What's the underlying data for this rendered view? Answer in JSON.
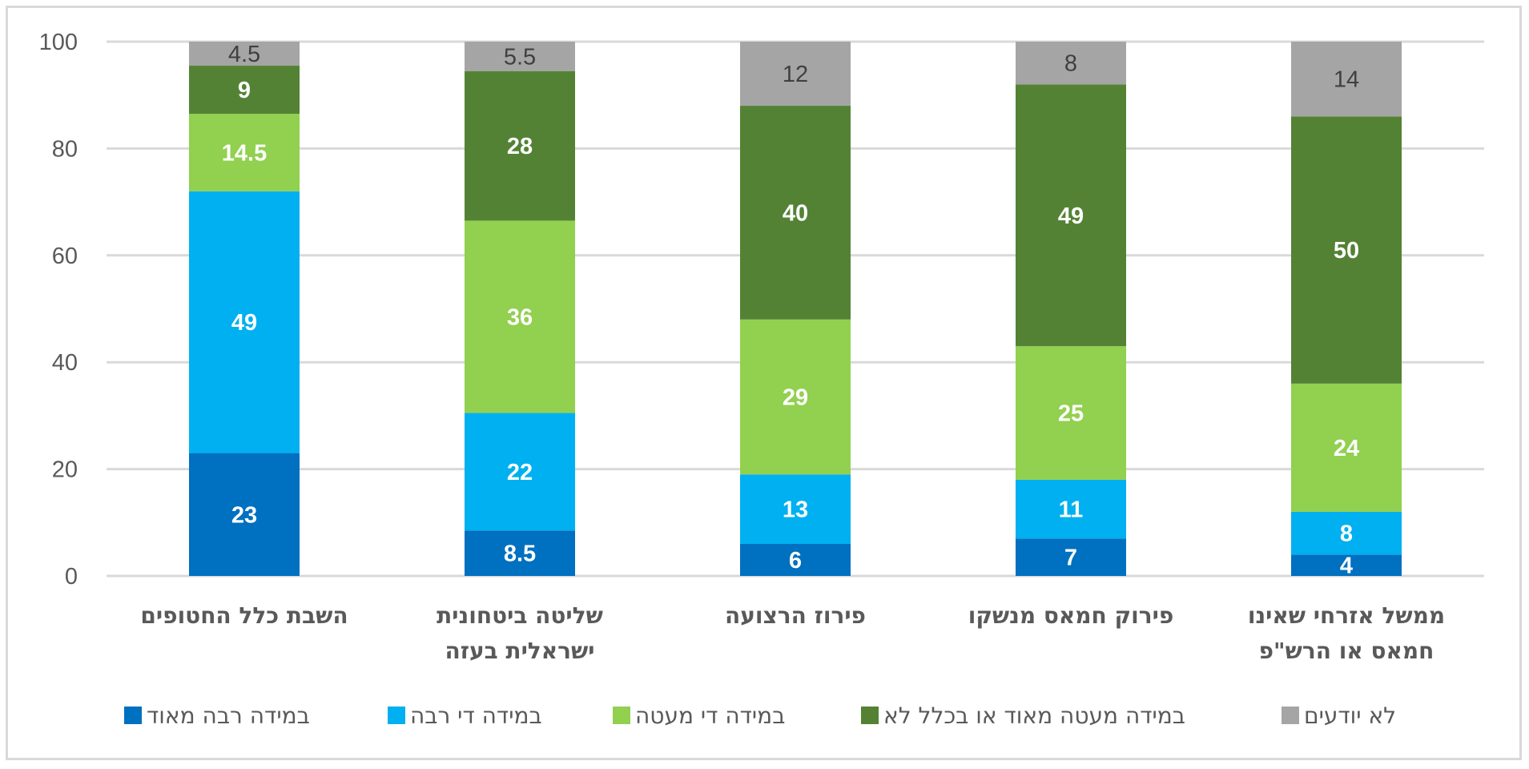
{
  "chart_data": {
    "type": "bar",
    "stacked": true,
    "title": "",
    "xlabel": "",
    "ylabel": "",
    "ylim": [
      0,
      100
    ],
    "yticks": [
      "0",
      "20",
      "40",
      "60",
      "80",
      "100"
    ],
    "grid": true,
    "legend_position": "bottom",
    "categories": [
      [
        "השבת כלל החטופים"
      ],
      [
        "שליטה ביטחונית",
        "ישראלית בעזה"
      ],
      [
        "פירוז הרצועה"
      ],
      [
        "פירוק חמאס מנשקו"
      ],
      [
        "ממשל אזרחי שאינו",
        "חמאס או הרש\"פ"
      ]
    ],
    "series": [
      {
        "name": "במידה רבה מאוד",
        "color": "#0070C0",
        "label_style": "light",
        "values": [
          23,
          8.5,
          6,
          7,
          4
        ],
        "labels": [
          "23",
          "8.5",
          "6",
          "7",
          "4"
        ]
      },
      {
        "name": "במידה די רבה",
        "color": "#00B0F0",
        "label_style": "light",
        "values": [
          49,
          22,
          13,
          11,
          8
        ],
        "labels": [
          "49",
          "22",
          "13",
          "11",
          "8"
        ]
      },
      {
        "name": "במידה די מעטה",
        "color": "#92D050",
        "label_style": "light",
        "values": [
          14.5,
          36,
          29,
          25,
          24
        ],
        "labels": [
          "14.5",
          "36",
          "29",
          "25",
          "24"
        ]
      },
      {
        "name": "במידה מעטה מאוד או בכלל לא",
        "color": "#548235",
        "label_style": "light",
        "values": [
          9,
          28,
          40,
          49,
          50
        ],
        "labels": [
          "9",
          "28",
          "40",
          "49",
          "50"
        ]
      },
      {
        "name": "לא יודעים",
        "color": "#A5A5A5",
        "label_style": "dark",
        "values": [
          4.5,
          5.5,
          12,
          8,
          14
        ],
        "labels": [
          "4.5",
          "5.5",
          "12",
          "8",
          "14"
        ]
      }
    ]
  }
}
